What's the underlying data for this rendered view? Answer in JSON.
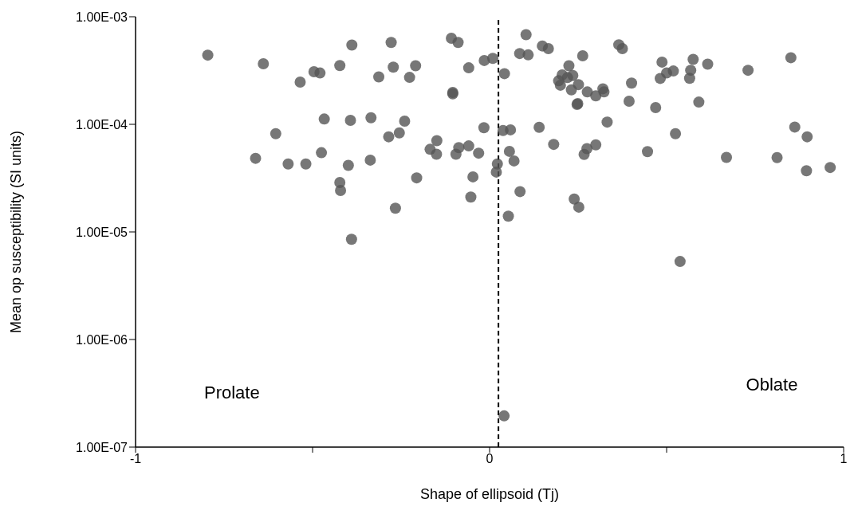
{
  "chart_data": {
    "type": "scatter",
    "xlabel": "Shape of ellipsoid (Tj)",
    "ylabel": "Mean op susceptibility (SI units)",
    "annotations": [
      "Prolate",
      "Oblate"
    ],
    "x": [
      -0.796,
      -0.639,
      -0.535,
      -0.496,
      -0.479,
      -0.423,
      -0.389,
      -0.313,
      -0.278,
      -0.272,
      -0.226,
      -0.209,
      -0.108,
      -0.089,
      -0.104,
      -0.104,
      -0.059,
      -0.015,
      0.009,
      -0.467,
      -0.393,
      -0.335,
      -0.24,
      -0.604,
      -0.285,
      -0.255,
      -0.149,
      -0.168,
      -0.15,
      -0.087,
      -0.095,
      -0.059,
      -0.031,
      -0.016,
      -0.661,
      -0.569,
      -0.519,
      -0.475,
      -0.399,
      -0.337,
      -0.206,
      -0.047,
      -0.053,
      -0.423,
      -0.421,
      -0.266,
      -0.39,
      0.103,
      0.085,
      0.109,
      0.149,
      0.166,
      0.042,
      0.263,
      0.224,
      0.205,
      0.235,
      0.22,
      0.195,
      0.2,
      0.251,
      0.231,
      0.276,
      0.3,
      0.32,
      0.323,
      0.249,
      0.247,
      0.365,
      0.375,
      0.401,
      0.394,
      0.469,
      0.487,
      0.482,
      0.5,
      0.519,
      0.575,
      0.568,
      0.565,
      0.616,
      0.591,
      0.73,
      0.851,
      0.038,
      0.059,
      0.14,
      0.332,
      0.525,
      0.862,
      0.897,
      0.181,
      0.275,
      0.267,
      0.3,
      0.056,
      0.069,
      0.446,
      0.022,
      0.019,
      0.669,
      0.812,
      0.895,
      0.962,
      0.086,
      0.239,
      0.252,
      0.053,
      0.538,
      0.041
    ],
    "values": [
      0.00044,
      0.000366,
      0.000247,
      0.000308,
      0.0003,
      0.000352,
      0.000546,
      0.000276,
      0.000577,
      0.00034,
      0.000273,
      0.00035,
      0.000631,
      0.000577,
      0.000198,
      0.000192,
      0.000335,
      0.000392,
      0.00041,
      0.000112,
      0.000109,
      0.000115,
      0.000107,
      8.18e-05,
      7.66e-05,
      8.32e-05,
      7.05e-05,
      5.86e-05,
      5.27e-05,
      6.07e-05,
      5.27e-05,
      6.3e-05,
      5.4e-05,
      9.29e-05,
      4.83e-05,
      4.28e-05,
      4.28e-05,
      5.45e-05,
      4.15e-05,
      4.65e-05,
      3.18e-05,
      3.25e-05,
      2.11e-05,
      2.88e-05,
      2.43e-05,
      1.66e-05,
      8.53e-06,
      0.000682,
      0.000455,
      0.000442,
      0.000535,
      0.000505,
      0.000296,
      0.000433,
      0.00035,
      0.000288,
      0.000284,
      0.000272,
      0.000254,
      0.000231,
      0.000234,
      0.000209,
      0.0002,
      0.000184,
      0.000214,
      0.0002,
      0.000156,
      0.000153,
      0.000549,
      0.000505,
      0.000242,
      0.000164,
      0.000143,
      0.000379,
      0.000267,
      0.0003,
      0.000313,
      0.000402,
      0.000318,
      0.000268,
      0.000362,
      0.000161,
      0.000318,
      0.000416,
      8.75e-05,
      8.89e-05,
      9.39e-05,
      0.000105,
      8.18e-05,
      9.44e-05,
      7.66e-05,
      6.51e-05,
      5.95e-05,
      5.25e-05,
      6.44e-05,
      5.61e-05,
      4.57e-05,
      5.57e-05,
      4.28e-05,
      3.6e-05,
      4.93e-05,
      4.91e-05,
      3.7e-05,
      3.97e-05,
      2.37e-05,
      2.02e-05,
      1.7e-05,
      1.4e-05,
      5.31e-06,
      1.95e-07
    ],
    "color": "#555555",
    "marker": "circle",
    "log": "y",
    "grid": false,
    "legend": false,
    "xlim": [
      -1,
      1
    ],
    "xticks": [
      -1,
      {
        "value": -0.5,
        "label": null
      },
      0,
      {
        "value": 0.5,
        "label": null
      },
      1
    ],
    "ylim": [
      1e-07,
      0.001
    ],
    "yticks": [
      {
        "value": 1e-07,
        "label": "1.00E-07"
      },
      {
        "value": 1e-06,
        "label": "1.00E-06"
      },
      {
        "value": 1e-05,
        "label": "1.00E-05"
      },
      {
        "value": 0.0001,
        "label": "1.00E-04"
      },
      {
        "value": 0.001,
        "label": "1.00E-03"
      }
    ],
    "ref_lines": [
      {
        "axis": "x",
        "value": 0.025,
        "color": "#000000",
        "line_style": "dashed"
      }
    ]
  }
}
